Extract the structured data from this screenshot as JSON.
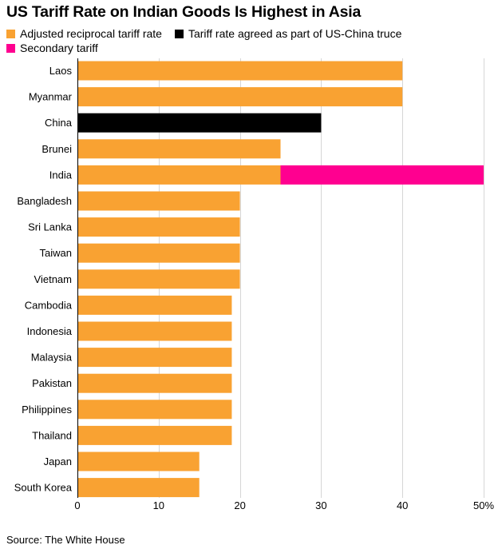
{
  "chart_data": {
    "type": "bar",
    "orientation": "horizontal",
    "stacked": true,
    "title": "US Tariff Rate on Indian Goods Is Highest in Asia",
    "categories": [
      "Laos",
      "Myanmar",
      "China",
      "Brunei",
      "India",
      "Bangladesh",
      "Sri Lanka",
      "Taiwan",
      "Vietnam",
      "Cambodia",
      "Indonesia",
      "Malaysia",
      "Pakistan",
      "Philippines",
      "Thailand",
      "Japan",
      "South Korea"
    ],
    "series": [
      {
        "name": "Adjusted reciprocal tariff rate",
        "color": "#f9a232",
        "values": [
          40,
          40,
          0,
          25,
          25,
          20,
          20,
          20,
          20,
          19,
          19,
          19,
          19,
          19,
          19,
          15,
          15
        ]
      },
      {
        "name": "Tariff rate agreed as part of US-China truce",
        "color": "#000000",
        "values": [
          0,
          0,
          30,
          0,
          0,
          0,
          0,
          0,
          0,
          0,
          0,
          0,
          0,
          0,
          0,
          0,
          0
        ]
      },
      {
        "name": "Secondary tariff",
        "color": "#ff0090",
        "values": [
          0,
          0,
          0,
          0,
          25,
          0,
          0,
          0,
          0,
          0,
          0,
          0,
          0,
          0,
          0,
          0,
          0
        ]
      }
    ],
    "xlim": [
      0,
      50
    ],
    "xticks": [
      "0",
      "10",
      "20",
      "30",
      "40",
      "50%"
    ],
    "xlabel": "",
    "ylabel": "",
    "grid": true,
    "legend_position": "top-left"
  },
  "source": "Source: The White House"
}
